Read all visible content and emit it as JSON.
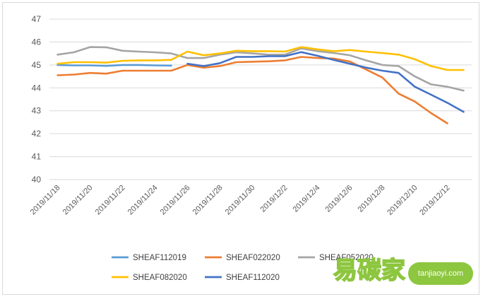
{
  "chart_data": {
    "type": "line",
    "title": "",
    "xlabel": "",
    "ylabel": "",
    "ylim": [
      40,
      47
    ],
    "yticks": [
      40,
      41,
      42,
      43,
      44,
      45,
      46,
      47
    ],
    "grid": true,
    "legend_position": "bottom",
    "x": [
      "2019/11/18",
      "2019/11/19",
      "2019/11/20",
      "2019/11/21",
      "2019/11/22",
      "2019/11/23",
      "2019/11/24",
      "2019/11/25",
      "2019/11/26",
      "2019/11/27",
      "2019/11/28",
      "2019/11/29",
      "2019/11/30",
      "2019/12/1",
      "2019/12/2",
      "2019/12/3",
      "2019/12/4",
      "2019/12/5",
      "2019/12/6",
      "2019/12/7",
      "2019/12/8",
      "2019/12/9",
      "2019/12/10",
      "2019/12/11",
      "2019/12/12",
      "2019/12/13"
    ],
    "xtick_labels": [
      "2019/11/18",
      "2019/11/20",
      "2019/11/22",
      "2019/11/24",
      "2019/11/26",
      "2019/11/28",
      "2019/11/30",
      "2019/12/2",
      "2019/12/4",
      "2019/12/6",
      "2019/12/8",
      "2019/12/10",
      "2019/12/12"
    ],
    "series": [
      {
        "name": "SHEAF112019",
        "color": "#5B9BD5",
        "values": [
          45.0,
          44.98,
          44.98,
          44.96,
          45.0,
          45.0,
          44.98,
          44.97,
          null,
          null,
          null,
          null,
          null,
          null,
          null,
          null,
          null,
          null,
          null,
          null,
          null,
          null,
          null,
          null,
          null,
          null
        ]
      },
      {
        "name": "SHEAF022020",
        "color": "#ED7D31",
        "values": [
          44.55,
          44.58,
          44.65,
          44.62,
          44.75,
          44.75,
          44.75,
          44.75,
          45.0,
          44.88,
          44.95,
          45.12,
          45.14,
          45.16,
          45.2,
          45.35,
          45.3,
          45.28,
          45.15,
          44.8,
          44.45,
          43.75,
          43.4,
          42.9,
          42.45,
          null
        ]
      },
      {
        "name": "SHEAF052020",
        "color": "#A5A5A5",
        "values": [
          45.45,
          45.55,
          45.78,
          45.77,
          45.62,
          45.58,
          45.55,
          45.5,
          45.3,
          45.3,
          45.45,
          45.55,
          45.5,
          45.45,
          45.45,
          45.72,
          45.6,
          45.52,
          45.42,
          45.2,
          45.0,
          44.95,
          44.5,
          44.15,
          44.05,
          43.88
        ]
      },
      {
        "name": "SHEAF082020",
        "color": "#FFC000",
        "values": [
          45.05,
          45.12,
          45.12,
          45.1,
          45.18,
          45.2,
          45.2,
          45.22,
          45.58,
          45.42,
          45.5,
          45.62,
          45.6,
          45.6,
          45.58,
          45.78,
          45.68,
          45.6,
          45.65,
          45.58,
          45.52,
          45.45,
          45.25,
          44.95,
          44.78,
          44.78
        ]
      },
      {
        "name": "SHEAF112020",
        "color": "#4472C4",
        "values": [
          null,
          null,
          null,
          null,
          null,
          null,
          null,
          null,
          45.05,
          44.95,
          45.08,
          45.35,
          45.35,
          45.38,
          45.38,
          45.56,
          45.4,
          45.22,
          45.05,
          44.88,
          44.75,
          44.65,
          44.05,
          43.7,
          43.35,
          42.95
        ]
      }
    ]
  },
  "watermark": {
    "chinese": "易碳家",
    "url": "tanjiaoyi.com",
    "color": "#8dc63f"
  }
}
